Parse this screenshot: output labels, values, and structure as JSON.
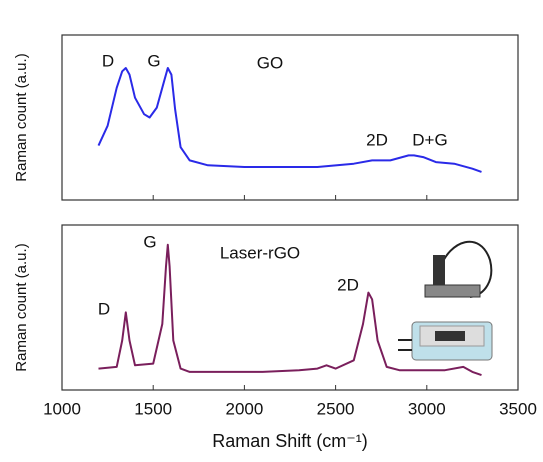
{
  "chart_data": [
    {
      "type": "line",
      "ylabel": "Raman count (a.u.)",
      "annotations": [
        "D",
        "G",
        "GO",
        "2D",
        "D+G"
      ],
      "xlim": [
        1000,
        3500
      ],
      "ylim": [
        0,
        100
      ],
      "series": [
        {
          "name": "GO",
          "color": "#2a2ae8",
          "x": [
            1200,
            1250,
            1300,
            1330,
            1350,
            1370,
            1400,
            1450,
            1480,
            1520,
            1560,
            1580,
            1600,
            1620,
            1650,
            1700,
            1800,
            2000,
            2200,
            2400,
            2600,
            2700,
            2800,
            2900,
            2930,
            2980,
            3050,
            3150,
            3250,
            3300
          ],
          "values": [
            33,
            45,
            68,
            78,
            80,
            76,
            62,
            52,
            50,
            56,
            72,
            80,
            76,
            55,
            32,
            24,
            21,
            20,
            20,
            20,
            22,
            24,
            24,
            27,
            27,
            26,
            23,
            22,
            19,
            17
          ]
        }
      ]
    },
    {
      "type": "line",
      "ylabel": "Raman count (a.u.)",
      "xlabel": "Raman Shift (cm⁻¹)",
      "annotations": [
        "G",
        "D",
        "Laser-rGO",
        "2D"
      ],
      "xlim": [
        1000,
        3500
      ],
      "xticks": [
        1000,
        1500,
        2000,
        2500,
        3000,
        3500
      ],
      "ylim": [
        0,
        100
      ],
      "series": [
        {
          "name": "Laser-rGO",
          "color": "#7a1f5c",
          "x": [
            1200,
            1300,
            1330,
            1350,
            1370,
            1400,
            1500,
            1550,
            1570,
            1580,
            1590,
            1610,
            1650,
            1700,
            1900,
            2100,
            2300,
            2400,
            2450,
            2500,
            2600,
            2650,
            2680,
            2700,
            2730,
            2780,
            2850,
            2950,
            3100,
            3200,
            3250,
            3300
          ],
          "values": [
            13,
            14,
            30,
            47,
            30,
            15,
            16,
            40,
            75,
            88,
            75,
            30,
            13,
            11,
            11,
            11,
            12,
            13,
            15,
            13,
            18,
            40,
            59,
            55,
            30,
            14,
            12,
            12,
            12,
            14,
            11,
            9
          ]
        }
      ]
    }
  ]
}
